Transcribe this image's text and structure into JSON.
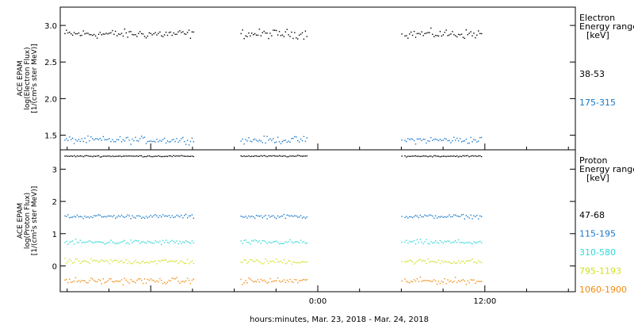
{
  "chart_data": {
    "type": "scatter",
    "xlabel": "hours:minutes, Mar. 23, 2018 - Mar. 24, 2018",
    "x_ticks": [
      {
        "label": "0:00",
        "hours": 0
      },
      {
        "label": "12:00",
        "hours": 12
      }
    ],
    "x_range_hours": [
      -18.5,
      18.5
    ],
    "gaps_hours": [
      [
        -8.9,
        -5.6
      ],
      [
        -0.8,
        6.2
      ],
      [
        11.8,
        18.5
      ]
    ],
    "panels": [
      {
        "id": "electron",
        "ylabel_lines": [
          "ACE EPAM",
          "log(Electron Flux)",
          "[1/(cm²s ster MeV)]"
        ],
        "ylim": [
          1.3,
          3.25
        ],
        "y_ticks": [
          1.5,
          2.0,
          2.5,
          3.0
        ],
        "y_tick_labels": [
          "1.5",
          "2.0",
          "2.5",
          "3.0"
        ],
        "legend_title": [
          "Electron",
          "Energy range",
          "[keV]"
        ],
        "series": [
          {
            "name": "38-53",
            "color": "#000000",
            "mean": 2.89,
            "spread": 0.09
          },
          {
            "name": "175-315",
            "color": "#1878c8",
            "mean": 1.44,
            "spread": 0.07
          }
        ]
      },
      {
        "id": "proton",
        "ylabel_lines": [
          "ACE EPAM",
          "log(Proton Flux)",
          "[1/(cm²s ster MeV)]"
        ],
        "ylim": [
          -0.8,
          3.6
        ],
        "y_ticks": [
          0,
          1,
          2,
          3
        ],
        "y_tick_labels": [
          "0",
          "1",
          "2",
          "3"
        ],
        "legend_title": [
          "Proton",
          "Energy range",
          "[keV]"
        ],
        "series": [
          {
            "name": "47-68",
            "color": "#000000",
            "mean": 3.42,
            "spread": 0.03
          },
          {
            "name": "115-195",
            "color": "#1878c8",
            "mean": 1.55,
            "spread": 0.09
          },
          {
            "name": "310-580",
            "color": "#30d8d8",
            "mean": 0.75,
            "spread": 0.11
          },
          {
            "name": "795-1193",
            "color": "#d0e020",
            "mean": 0.15,
            "spread": 0.12
          },
          {
            "name": "1060-1900",
            "color": "#f08a10",
            "mean": -0.45,
            "spread": 0.14
          }
        ]
      }
    ]
  }
}
